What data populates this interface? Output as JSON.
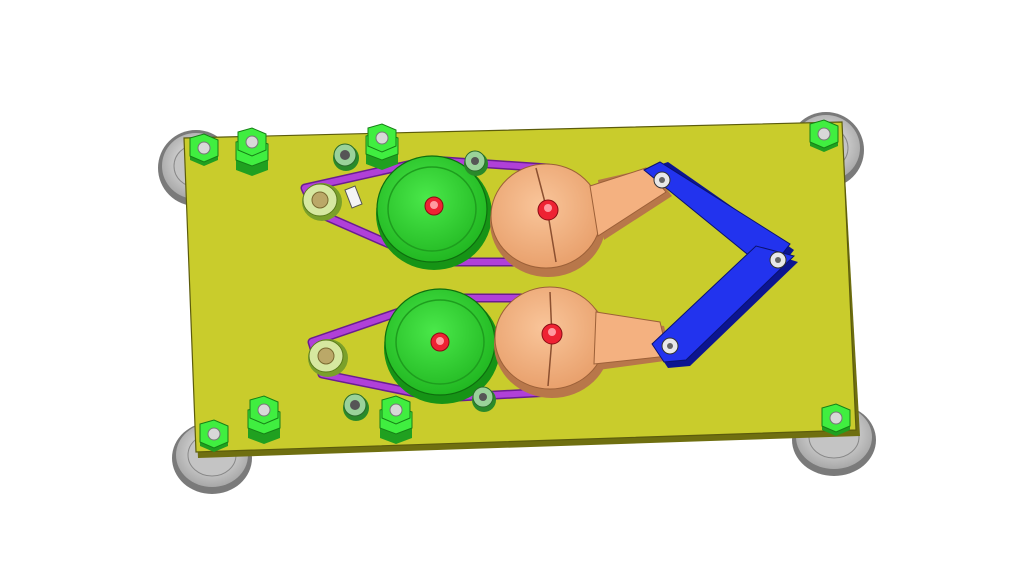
{
  "scene": {
    "kind": "cad-assembly-render",
    "text": "",
    "colors": {
      "background": "#ffffff",
      "plate": "#c9cc2c",
      "plate_edge": "#6f6f10",
      "pulley": "#2ccc2c",
      "pulley_dark": "#169416",
      "cam": "#f4b180",
      "cam_dark": "#b8774a",
      "link": "#2233ee",
      "link_dark": "#0c1590",
      "belt": "#b040d8",
      "belt_dark": "#6a1c90",
      "nut": "#40ee40",
      "hub": "#ee2233",
      "caster": "#d0d0d0",
      "idler": "#d6e8a0"
    },
    "parts": [
      "base-plate",
      "caster-wheels",
      "drive-pulleys",
      "cam-disks",
      "linkage-arms",
      "belts",
      "idler-pulleys",
      "hex-nuts"
    ]
  }
}
